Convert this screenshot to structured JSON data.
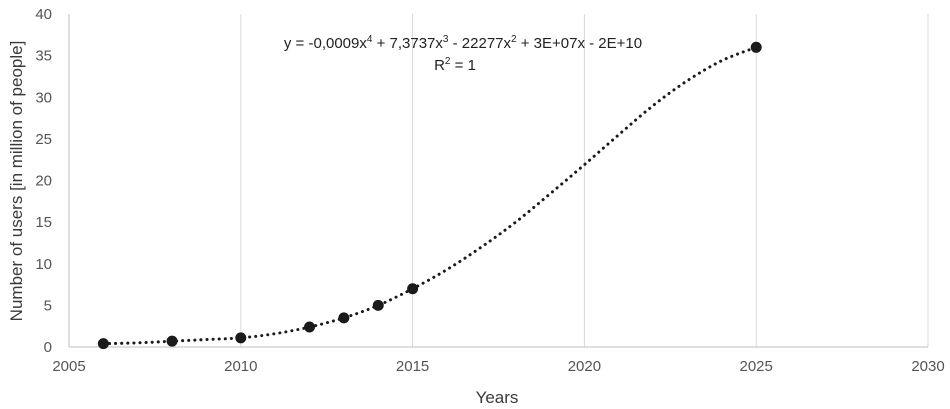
{
  "chart_data": {
    "type": "scatter",
    "title": "",
    "xlabel": "Years",
    "ylabel": "Number of users [in million of people]",
    "xlim": [
      2005,
      2030
    ],
    "ylim": [
      0,
      40
    ],
    "x_ticks": [
      2005,
      2010,
      2015,
      2020,
      2025,
      2030
    ],
    "y_ticks": [
      0,
      5,
      10,
      15,
      20,
      25,
      30,
      35,
      40
    ],
    "grid": "vertical",
    "legend": "none",
    "series": [
      {
        "x": [
          2006,
          2008,
          2010,
          2012,
          2013,
          2014,
          2015,
          2025
        ],
        "y": [
          0.4,
          0.7,
          1.1,
          2.4,
          3.5,
          5.0,
          7.0,
          36.0
        ],
        "marker_color": "#1a1a1a"
      }
    ],
    "trendline": {
      "style": "dotted",
      "color": "#1a1a1a",
      "points": [
        [
          2006,
          0.4
        ],
        [
          2007,
          0.5
        ],
        [
          2008,
          0.7
        ],
        [
          2009,
          0.9
        ],
        [
          2010,
          1.1
        ],
        [
          2011,
          1.6
        ],
        [
          2012,
          2.4
        ],
        [
          2013,
          3.5
        ],
        [
          2014,
          5.0
        ],
        [
          2015,
          7.0
        ],
        [
          2016,
          9.3
        ],
        [
          2017,
          12.0
        ],
        [
          2018,
          15.0
        ],
        [
          2019,
          18.4
        ],
        [
          2020,
          21.9
        ],
        [
          2021,
          25.5
        ],
        [
          2022,
          29.0
        ],
        [
          2023,
          32.0
        ],
        [
          2024,
          34.4
        ],
        [
          2025,
          36.0
        ]
      ]
    },
    "equation": {
      "y_prefix": "y = -0,0009x",
      "exp1": "4",
      "t2": " + 7,3737x",
      "exp2": "3",
      "t3": " - 22277x",
      "exp3": "2",
      "t4": " + 3E+07x - 2E+10"
    },
    "r_squared": {
      "prefix": "R",
      "exp": "2",
      "suffix": " = 1"
    }
  }
}
